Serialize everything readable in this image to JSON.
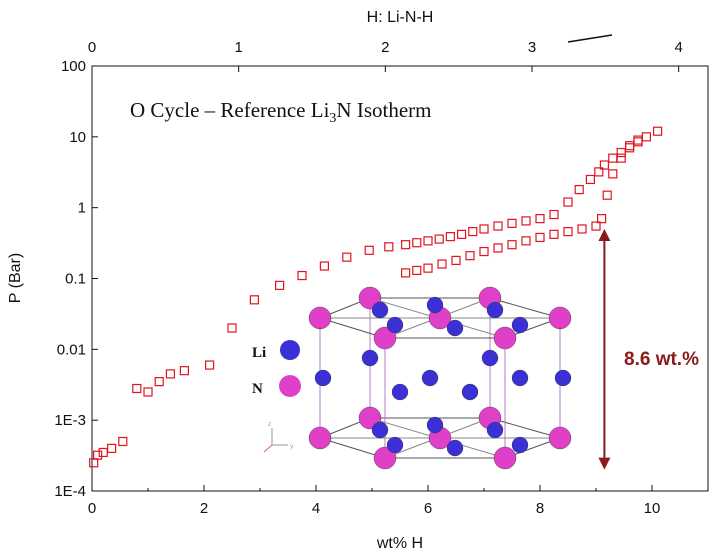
{
  "chart_data": {
    "type": "scatter",
    "title": "O Cycle – Reference Li",
    "title_sub": "3",
    "title_rest": "N Isotherm",
    "xlabel": "wt% H",
    "ylabel": "P (Bar)",
    "top_xlabel": "H: Li-N-H",
    "xlim": [
      0,
      11
    ],
    "ylim": [
      0.0001,
      100
    ],
    "yscale": "log",
    "top_xlim": [
      0,
      4.2
    ],
    "x_ticks": [
      "0",
      "2",
      "4",
      "6",
      "8",
      "10"
    ],
    "x_tick_values": [
      0,
      2,
      4,
      6,
      8,
      10
    ],
    "top_x_ticks": [
      "0",
      "1",
      "2",
      "3",
      "4"
    ],
    "top_x_tick_values": [
      0,
      1,
      2,
      3,
      4
    ],
    "y_ticks": [
      "1E-4",
      "1E-3",
      "0.01",
      "0.1",
      "1",
      "10",
      "100"
    ],
    "y_tick_values": [
      0.0001,
      0.001,
      0.01,
      0.1,
      1,
      10,
      100
    ],
    "marker_color": "#e0141e",
    "series": [
      {
        "marker": "open-square",
        "x": [
          0.03,
          0.1,
          0.2,
          0.35,
          0.55,
          0.8,
          1.0,
          1.2,
          1.4,
          1.65,
          2.1,
          2.5,
          2.9,
          3.35,
          3.75,
          4.15,
          4.55,
          4.95,
          5.3,
          5.6,
          5.8,
          6.0,
          6.2,
          6.4,
          6.6,
          6.8,
          7.0,
          7.25,
          7.5,
          7.75,
          8.0,
          8.25,
          8.5,
          8.7,
          8.9,
          9.05,
          9.15,
          9.3,
          9.45,
          9.6,
          9.75,
          9.9,
          10.1,
          5.6,
          5.8,
          6.0,
          6.25,
          6.5,
          6.75,
          7.0,
          7.25,
          7.5,
          7.75,
          8.0,
          8.25,
          8.5,
          8.75,
          9.0,
          9.1,
          9.2,
          9.3,
          9.45,
          9.6,
          9.75
        ],
        "y": [
          0.00025,
          0.00032,
          0.00035,
          0.0004,
          0.0005,
          0.0028,
          0.0025,
          0.0035,
          0.0045,
          0.005,
          0.006,
          0.02,
          0.05,
          0.08,
          0.11,
          0.15,
          0.2,
          0.25,
          0.28,
          0.3,
          0.32,
          0.34,
          0.36,
          0.39,
          0.42,
          0.46,
          0.5,
          0.55,
          0.6,
          0.65,
          0.7,
          0.8,
          1.2,
          1.8,
          2.5,
          3.2,
          4.0,
          5.0,
          6.0,
          7.5,
          8.5,
          10.0,
          12.0,
          0.12,
          0.13,
          0.14,
          0.16,
          0.18,
          0.21,
          0.24,
          0.27,
          0.3,
          0.34,
          0.38,
          0.42,
          0.46,
          0.5,
          0.55,
          0.7,
          1.5,
          3.0,
          5.0,
          7.0,
          9.0
        ]
      }
    ],
    "annotation": {
      "label": "8.6 wt.%",
      "arrow_color": "#8b1a1a",
      "x": 9.15,
      "y_from": 0.0002,
      "y_to": 0.5
    },
    "inset": {
      "atoms": [
        {
          "symbol": "Li",
          "color": "#3b2fd6"
        },
        {
          "symbol": "N",
          "color": "#e040c8"
        }
      ],
      "axis_glyph_z": "z",
      "axis_glyph_y": "y"
    },
    "grid": false
  }
}
